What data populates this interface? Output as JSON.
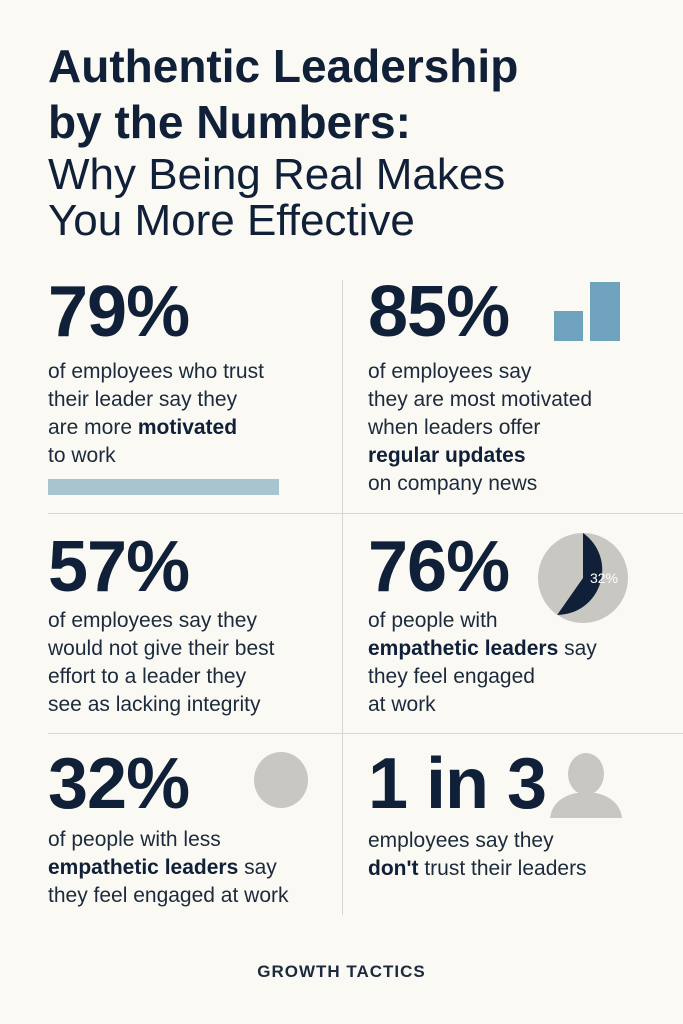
{
  "title": {
    "line1": "Authentic Leadership",
    "line2": "by the Numbers:",
    "line3": "Why Being Real Makes",
    "line4": "You More Effective"
  },
  "colors": {
    "text": "#0f2038",
    "bar_light": "#a8c4cf",
    "bar_blue": "#6fa3bd",
    "gray": "#c9c7c2",
    "background": "#fbf9f3"
  },
  "stats": [
    {
      "number": "79%",
      "icon": "progress-bar",
      "lines": [
        [
          {
            "text": "of employees who trust"
          }
        ],
        [
          {
            "text": "their leader say they"
          }
        ],
        [
          {
            "text": "are more "
          },
          {
            "text": "motivated",
            "bold": true
          }
        ],
        [
          {
            "text": "to work"
          }
        ]
      ]
    },
    {
      "number": "85%",
      "icon": "bar-chart-icon",
      "lines": [
        [
          {
            "text": "of employees say"
          }
        ],
        [
          {
            "text": "they are most motivated"
          }
        ],
        [
          {
            "text": "when leaders offer"
          }
        ],
        [
          {
            "text": "regular updates",
            "bold": true
          }
        ],
        [
          {
            "text": "on company news"
          }
        ]
      ]
    },
    {
      "number": "57%",
      "icon": "",
      "lines": [
        [
          {
            "text": "of employees say they"
          }
        ],
        [
          {
            "text": "would not give their best"
          }
        ],
        [
          {
            "text": "effort to a leader they"
          }
        ],
        [
          {
            "text": "see as lacking integrity"
          }
        ]
      ]
    },
    {
      "number": "76%",
      "icon": "pie-chart-icon",
      "pie_label": "32%",
      "lines": [
        [
          {
            "text": "of people with"
          }
        ],
        [
          {
            "text": "empathetic leaders",
            "bold": true
          },
          {
            "text": " say"
          }
        ],
        [
          {
            "text": "they feel engaged"
          }
        ],
        [
          {
            "text": "at work"
          }
        ]
      ]
    },
    {
      "number": "32%",
      "icon": "circle-icon",
      "lines": [
        [
          {
            "text": "of people with less"
          }
        ],
        [
          {
            "text": "empathetic leaders",
            "bold": true
          },
          {
            "text": " say"
          }
        ],
        [
          {
            "text": "they feel engaged at work"
          }
        ]
      ]
    },
    {
      "number": "1 in 3",
      "icon": "person-icon",
      "lines": [
        [
          {
            "text": "employees say they"
          }
        ],
        [
          {
            "text": "don't",
            "bold": true
          },
          {
            "text": " trust their leaders"
          }
        ]
      ]
    }
  ],
  "footer": "GROWTH TACTICS"
}
